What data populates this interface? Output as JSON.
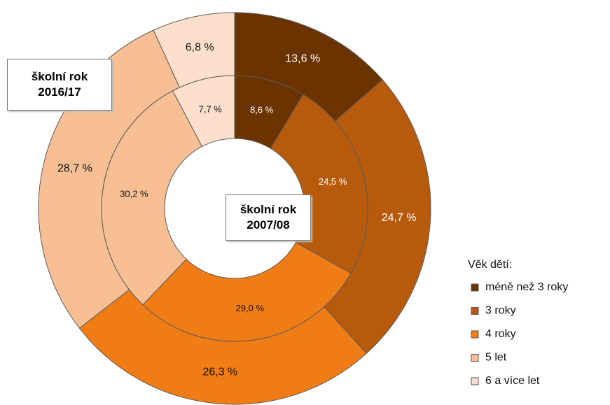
{
  "chart_data": {
    "type": "donut",
    "categories": [
      "méně než 3 roky",
      "3 roky",
      "4 roky",
      "5 let",
      "6 a více let"
    ],
    "legend_title": "Věk dětí:",
    "colors": [
      "#6b3300",
      "#b85a0b",
      "#f07c15",
      "#f8bf95",
      "#fde0cc"
    ],
    "series": [
      {
        "name": "školní rok\n2016/17",
        "values": [
          13.6,
          24.7,
          26.3,
          28.7,
          6.8
        ],
        "value_labels": [
          "13,6 %",
          "24,7 %",
          "26,3 %",
          "28,7 %",
          "6,8 %"
        ]
      },
      {
        "name": "školní rok\n2007/08",
        "values": [
          8.6,
          24.5,
          29.0,
          30.2,
          7.7
        ],
        "value_labels": [
          "8,6 %",
          "24,5 %",
          "29,0 %",
          "30,2 %",
          "7,7 %"
        ]
      }
    ],
    "legend": "right"
  }
}
